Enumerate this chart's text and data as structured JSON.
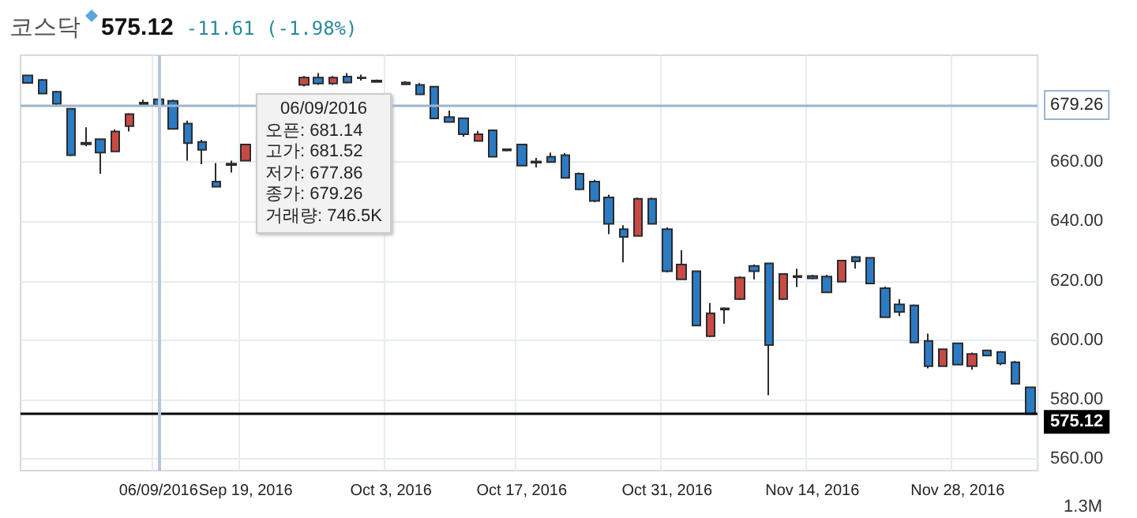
{
  "chart_data": {
    "type": "candlestick",
    "title": "코스닥",
    "subtitle": "575.12",
    "annotations": [
      "-11.61 (-1.98%)",
      "06/09/2016",
      "오픈: 681.14",
      "고가: 681.52",
      "저가: 677.86",
      "종가: 679.26",
      "거래량: 746.5K",
      "1.3M"
    ],
    "categories": [
      null,
      null,
      null,
      null,
      null,
      null,
      null,
      null,
      null,
      "06/09/2016",
      null,
      null,
      null,
      null,
      null,
      "Sep 19, 2016",
      null,
      null,
      null,
      null,
      null,
      null,
      null,
      null,
      null,
      "Oct 3, 2016",
      null,
      null,
      null,
      null,
      null,
      null,
      null,
      null,
      "Oct 17, 2016",
      null,
      null,
      null,
      null,
      null,
      null,
      null,
      null,
      null,
      "Oct 31, 2016",
      null,
      null,
      null,
      null,
      null,
      null,
      null,
      null,
      null,
      "Nov 14, 2016",
      null,
      null,
      null,
      null,
      null,
      null,
      null,
      null,
      null,
      "Nov 28, 2016",
      null,
      null,
      null,
      null,
      null
    ],
    "ohlc": [
      [
        689.2,
        689.5,
        686.5,
        686.7
      ],
      [
        687.7,
        688,
        683,
        683.1
      ],
      [
        683.7,
        684,
        678.9,
        679.6
      ],
      [
        678,
        678,
        662,
        662.3
      ],
      [
        666.5,
        671.7,
        665.3,
        666
      ],
      [
        667.7,
        668,
        656.1,
        663.2
      ],
      [
        663.6,
        671,
        663.5,
        670.3
      ],
      [
        672.1,
        676.5,
        670.3,
        676.2
      ],
      [
        680,
        681,
        679.3,
        679.5
      ],
      [
        681.14,
        681.52,
        677.86,
        679.26
      ],
      [
        680.6,
        681,
        671,
        671.2
      ],
      [
        673,
        674,
        660.5,
        666.4
      ],
      [
        666.8,
        667.5,
        659.3,
        664.1
      ],
      [
        653.4,
        659.7,
        651.5,
        651.7
      ],
      [
        659.5,
        660.5,
        656.5,
        659
      ],
      [
        660.5,
        666,
        660.3,
        665.9
      ],
      null,
      null,
      null,
      [
        686,
        689,
        685.5,
        688.5
      ],
      [
        688.5,
        690,
        686,
        686.5
      ],
      [
        686.5,
        689,
        686,
        688.5
      ],
      [
        688.8,
        690,
        686.5,
        686.8
      ],
      [
        688.5,
        689.5,
        687.5,
        688.3
      ],
      [
        687.5,
        687.8,
        686.8,
        687
      ],
      null,
      [
        686.8,
        687.3,
        686,
        686.2
      ],
      [
        686,
        686.6,
        682.6,
        682.8
      ],
      [
        685.4,
        685.5,
        674.5,
        674.7
      ],
      [
        675.2,
        677.4,
        673.3,
        673.5
      ],
      [
        674.8,
        675,
        668.5,
        669.4
      ],
      [
        667.1,
        670.5,
        667,
        669.4
      ],
      [
        670.7,
        671,
        661.5,
        661.8
      ],
      [
        664.3,
        664.5,
        663.6,
        663.9
      ],
      [
        665.9,
        666,
        658.6,
        658.8
      ],
      [
        660.2,
        661.4,
        658.2,
        659.8
      ],
      [
        661.8,
        663.2,
        659.8,
        660
      ],
      [
        662.3,
        663,
        654.5,
        654.7
      ],
      [
        656.1,
        656.5,
        650.5,
        650.8
      ],
      [
        653.4,
        654,
        646.5,
        646.9
      ],
      [
        648.1,
        649,
        635.7,
        639.2
      ],
      [
        637.4,
        638.7,
        626.2,
        634.8
      ],
      [
        635.1,
        648,
        635,
        647.6
      ],
      [
        647.6,
        648,
        639,
        639.2
      ],
      [
        637.4,
        638,
        622.8,
        623.2
      ],
      [
        620.5,
        630.3,
        620.3,
        625.5
      ],
      [
        623.2,
        623.5,
        604.7,
        604.9
      ],
      [
        601.3,
        612.5,
        601,
        609
      ],
      [
        610.3,
        611,
        605.5,
        610.7
      ],
      [
        613.8,
        621.5,
        613.5,
        621.1
      ],
      [
        625,
        625.5,
        620.5,
        623.2
      ],
      [
        625.9,
        626,
        581.4,
        598.3
      ],
      [
        613.8,
        622.5,
        613.5,
        622.3
      ],
      [
        621.2,
        624.1,
        617.9,
        621.6
      ],
      [
        621.6,
        622,
        620.5,
        620.8
      ],
      [
        621.4,
        622,
        616,
        616.1
      ],
      [
        619.7,
        627,
        619.5,
        626.8
      ],
      [
        628,
        628.3,
        624.1,
        626.5
      ],
      [
        627.7,
        628,
        619,
        619.1
      ],
      [
        617.5,
        618,
        607.5,
        607.7
      ],
      [
        612,
        613.8,
        608.1,
        609.5
      ],
      [
        611.7,
        612,
        599,
        599.2
      ],
      [
        599.7,
        602.2,
        590.5,
        591.2
      ],
      [
        591.2,
        597,
        591,
        596.9
      ],
      [
        598.9,
        599.2,
        591.5,
        591.7
      ],
      [
        591.2,
        595.8,
        590,
        595.3
      ],
      [
        596.5,
        596.7,
        594.5,
        594.8
      ],
      [
        596,
        596.3,
        591.5,
        592.1
      ],
      [
        592.5,
        593,
        585,
        585.3
      ],
      [
        584.1,
        584.3,
        575,
        575.12
      ]
    ],
    "colors": [
      "#2b7bc4",
      "#2b7bc4",
      "#2b7bc4",
      "#2b7bc4",
      "#2b7bc4",
      "#2b7bc4",
      "#c94a45",
      "#c94a45",
      "#2b7bc4",
      "#2b7bc4",
      "#2b7bc4",
      "#2b7bc4",
      "#2b7bc4",
      "#2b7bc4",
      "#2b7bc4",
      "#c94a45",
      null,
      null,
      null,
      "#c94a45",
      "#2b7bc4",
      "#c94a45",
      "#2b7bc4",
      "#2b7bc4",
      "#2b7bc4",
      null,
      "#2b7bc4",
      "#2b7bc4",
      "#2b7bc4",
      "#2b7bc4",
      "#2b7bc4",
      "#c94a45",
      "#2b7bc4",
      "#2b7bc4",
      "#2b7bc4",
      "#2b7bc4",
      "#2b7bc4",
      "#2b7bc4",
      "#2b7bc4",
      "#2b7bc4",
      "#2b7bc4",
      "#2b7bc4",
      "#c94a45",
      "#2b7bc4",
      "#2b7bc4",
      "#c94a45",
      "#2b7bc4",
      "#c94a45",
      "#c94a45",
      "#c94a45",
      "#2b7bc4",
      "#2b7bc4",
      "#c94a45",
      "#c94a45",
      "#2b7bc4",
      "#2b7bc4",
      "#c94a45",
      "#2b7bc4",
      "#2b7bc4",
      "#2b7bc4",
      "#2b7bc4",
      "#2b7bc4",
      "#2b7bc4",
      "#c94a45",
      "#2b7bc4",
      "#c94a45",
      "#2b7bc4",
      "#2b7bc4",
      "#2b7bc4",
      "#2b7bc4"
    ],
    "ylim": [
      556,
      696
    ],
    "yticks": [
      {
        "value": 560,
        "label": "560.00"
      },
      {
        "value": 580,
        "label": "580.00"
      },
      {
        "value": 600,
        "label": "600.00"
      },
      {
        "value": 620,
        "label": "620.00"
      },
      {
        "value": 640,
        "label": "640.00"
      },
      {
        "value": 660,
        "label": "660.00"
      }
    ],
    "ref_lines": [
      {
        "axis": "y",
        "value": 679.26,
        "label": "679.26",
        "color": "#9db4cc"
      },
      {
        "axis": "y",
        "value": 575.12,
        "label": "575.12",
        "color": "#000000"
      },
      {
        "axis": "x",
        "value": "06/09/2016",
        "color": "#b5c7d8"
      }
    ],
    "grid": true
  }
}
